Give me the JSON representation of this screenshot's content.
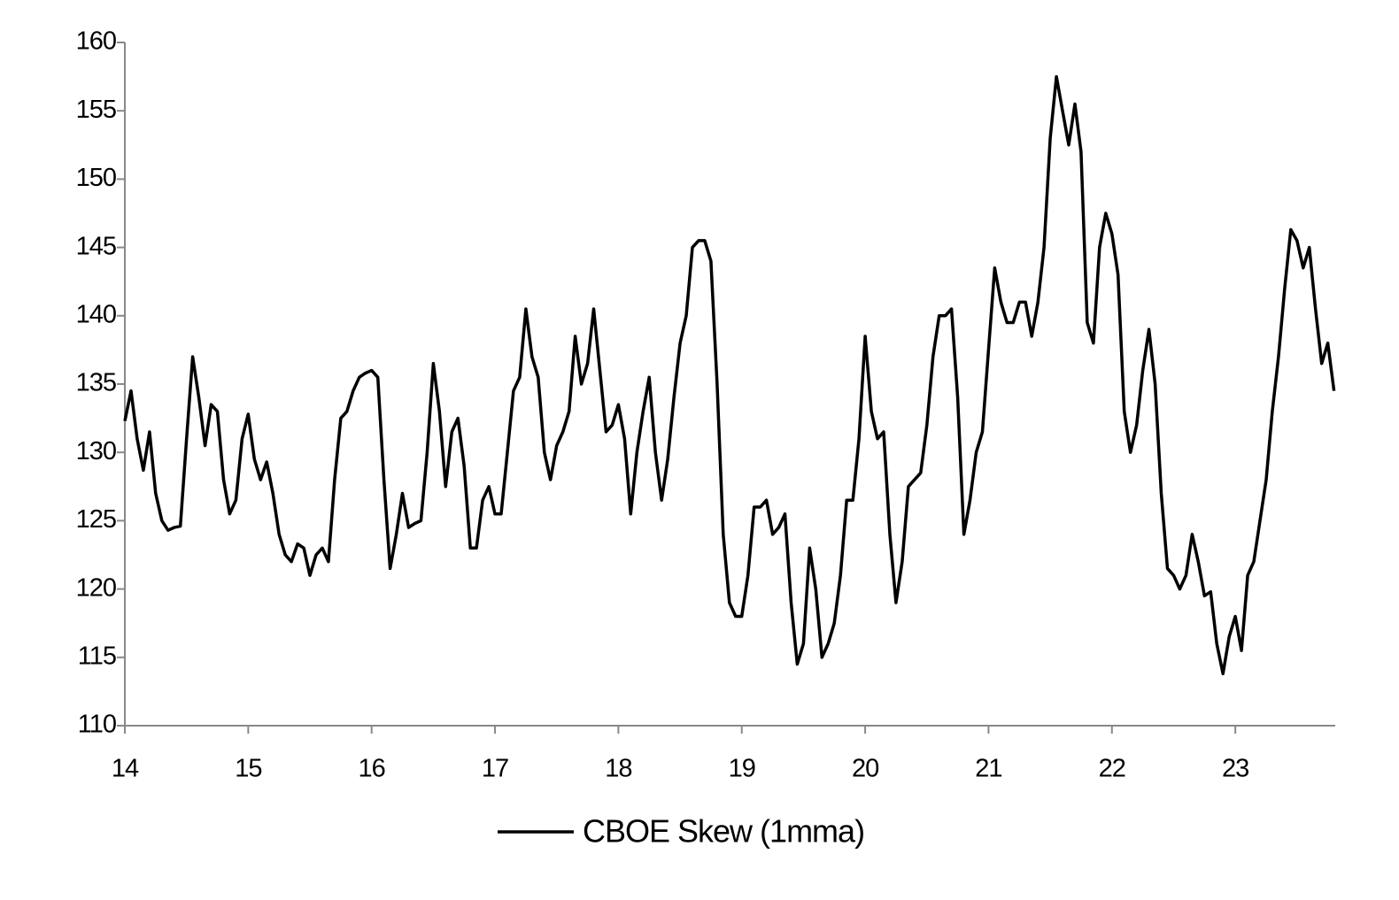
{
  "chart_data": {
    "type": "line",
    "x": [
      14.0,
      14.05,
      14.1,
      14.15,
      14.2,
      14.25,
      14.3,
      14.35,
      14.4,
      14.45,
      14.5,
      14.55,
      14.6,
      14.65,
      14.7,
      14.75,
      14.8,
      14.85,
      14.9,
      14.95,
      15.0,
      15.05,
      15.1,
      15.15,
      15.2,
      15.25,
      15.3,
      15.35,
      15.4,
      15.45,
      15.5,
      15.55,
      15.6,
      15.65,
      15.7,
      15.75,
      15.8,
      15.85,
      15.9,
      15.95,
      16.0,
      16.05,
      16.1,
      16.15,
      16.2,
      16.25,
      16.3,
      16.35,
      16.4,
      16.45,
      16.5,
      16.55,
      16.6,
      16.65,
      16.7,
      16.75,
      16.8,
      16.85,
      16.9,
      16.95,
      17.0,
      17.05,
      17.1,
      17.15,
      17.2,
      17.25,
      17.3,
      17.35,
      17.4,
      17.45,
      17.5,
      17.55,
      17.6,
      17.65,
      17.7,
      17.75,
      17.8,
      17.85,
      17.9,
      17.95,
      18.0,
      18.05,
      18.1,
      18.15,
      18.2,
      18.25,
      18.3,
      18.35,
      18.4,
      18.45,
      18.5,
      18.55,
      18.6,
      18.65,
      18.7,
      18.75,
      18.8,
      18.85,
      18.9,
      18.95,
      19.0,
      19.05,
      19.1,
      19.15,
      19.2,
      19.25,
      19.3,
      19.35,
      19.4,
      19.45,
      19.5,
      19.55,
      19.6,
      19.65,
      19.7,
      19.75,
      19.8,
      19.85,
      19.9,
      19.95,
      20.0,
      20.05,
      20.1,
      20.15,
      20.2,
      20.25,
      20.3,
      20.35,
      20.4,
      20.45,
      20.5,
      20.55,
      20.6,
      20.65,
      20.7,
      20.75,
      20.8,
      20.85,
      20.9,
      20.95,
      21.0,
      21.05,
      21.1,
      21.15,
      21.2,
      21.25,
      21.3,
      21.35,
      21.4,
      21.45,
      21.5,
      21.55,
      21.6,
      21.65,
      21.7,
      21.75,
      21.8,
      21.85,
      21.9,
      21.95,
      22.0,
      22.05,
      22.1,
      22.15,
      22.2,
      22.25,
      22.3,
      22.35,
      22.4,
      22.45,
      22.5,
      22.55,
      22.6,
      22.65,
      22.7,
      22.75,
      22.8,
      22.85,
      22.9,
      22.95,
      23.0,
      23.05,
      23.1,
      23.15,
      23.2,
      23.25,
      23.3,
      23.35,
      23.4,
      23.45,
      23.5,
      23.55,
      23.6,
      23.65,
      23.7,
      23.75,
      23.8
    ],
    "series": [
      {
        "name": "CBOE Skew (1mma)",
        "color": "#000000",
        "values": [
          132.3,
          134.5,
          131,
          128.7,
          131.5,
          127,
          125,
          124.3,
          124.5,
          124.6,
          131,
          137,
          134,
          130.5,
          133.5,
          133,
          128,
          125.5,
          126.5,
          131,
          132.8,
          129.5,
          128,
          129.3,
          127,
          124,
          122.5,
          122,
          123.3,
          123,
          121,
          122.5,
          123,
          122,
          128,
          132.5,
          133,
          134.5,
          135.5,
          135.8,
          136,
          135.5,
          128,
          121.5,
          124,
          127,
          124.5,
          124.8,
          125,
          130,
          136.5,
          133,
          127.5,
          131.5,
          132.5,
          129,
          123,
          123,
          126.5,
          127.5,
          125.5,
          125.5,
          130,
          134.5,
          135.5,
          140.5,
          137,
          135.5,
          130,
          128,
          130.5,
          131.5,
          133,
          138.5,
          135,
          136.5,
          140.5,
          136,
          131.5,
          132,
          133.5,
          131,
          125.5,
          130,
          133,
          135.5,
          130,
          126.5,
          129.5,
          134,
          138,
          140,
          145,
          145.5,
          145.5,
          144,
          135,
          124,
          119,
          118,
          118,
          121,
          126,
          126,
          126.5,
          124,
          124.5,
          125.5,
          119,
          114.5,
          116,
          123,
          120,
          115,
          116,
          117.5,
          121,
          126.5,
          126.5,
          131,
          138.5,
          133,
          131,
          131.5,
          124,
          119,
          122,
          127.5,
          128,
          128.5,
          132,
          137,
          140,
          140,
          140.5,
          134,
          124,
          126.5,
          130,
          131.5,
          137.5,
          143.5,
          141,
          139.5,
          139.5,
          141,
          141,
          138.5,
          141,
          145,
          153,
          157.5,
          155,
          152.5,
          155.5,
          152,
          139.5,
          138,
          145,
          147.5,
          146,
          143,
          133,
          130,
          132,
          136,
          139,
          135,
          127,
          121.5,
          121,
          120,
          121,
          124,
          122,
          119.5,
          119.8,
          116,
          113.8,
          116.5,
          118,
          115.5,
          121,
          122,
          125,
          128,
          133,
          137,
          142,
          146.3,
          145.5,
          143.5,
          145,
          140.5,
          136.5,
          138,
          134.5
        ]
      }
    ],
    "xlim": [
      14,
      23.81
    ],
    "xticks": [
      14,
      15,
      16,
      17,
      18,
      19,
      20,
      21,
      22,
      23
    ],
    "ylim": [
      110,
      160
    ],
    "yticks": [
      110,
      115,
      120,
      125,
      130,
      135,
      140,
      145,
      150,
      155,
      160
    ],
    "grid": false,
    "legend": "bottom"
  }
}
